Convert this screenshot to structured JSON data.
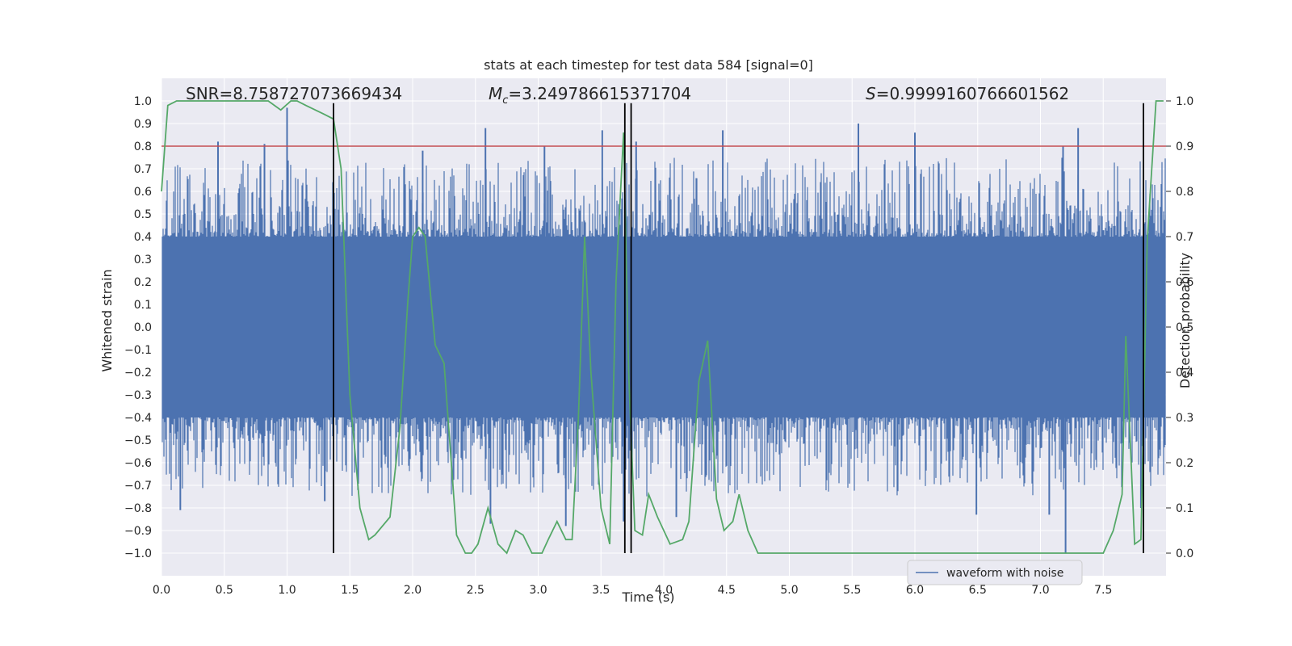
{
  "chart_data": {
    "type": "line",
    "title": "stats at each timestep for test data 584 [signal=0]",
    "xlabel": "Time (s)",
    "ylabel": "Whitened strain",
    "ylabel_right": "Detection probability",
    "xlim": [
      0.0,
      8.0
    ],
    "ylim": [
      -1.1,
      1.1
    ],
    "ylim_right": [
      -0.05,
      1.05
    ],
    "x_ticks": [
      0.0,
      0.5,
      1.0,
      1.5,
      2.0,
      2.5,
      3.0,
      3.5,
      4.0,
      4.5,
      5.0,
      5.5,
      6.0,
      6.5,
      7.0,
      7.5
    ],
    "x_tick_labels": [
      "0.0",
      "0.5",
      "1.0",
      "1.5",
      "2.0",
      "2.5",
      "3.0",
      "3.5",
      "4.0",
      "4.5",
      "5.0",
      "5.5",
      "6.0",
      "6.5",
      "7.0",
      "7.5"
    ],
    "y_ticks": [
      1.0,
      0.9,
      0.8,
      0.7,
      0.6,
      0.5,
      0.4,
      0.3,
      0.2,
      0.1,
      0.0,
      -0.1,
      -0.2,
      -0.3,
      -0.4,
      -0.5,
      -0.6,
      -0.7,
      -0.8,
      -0.9,
      -1.0
    ],
    "y_tick_labels": [
      "1.0",
      "0.9",
      "0.8",
      "0.7",
      "0.6",
      "0.5",
      "0.4",
      "0.3",
      "0.2",
      "0.1",
      "0.0",
      "−0.1",
      "−0.2",
      "−0.3",
      "−0.4",
      "−0.5",
      "−0.6",
      "−0.7",
      "−0.8",
      "−0.9",
      "−1.0"
    ],
    "y_right_ticks": [
      1.0,
      0.9,
      0.8,
      0.7,
      0.6,
      0.5,
      0.4,
      0.3,
      0.2,
      0.1,
      0.0
    ],
    "y_right_tick_labels": [
      "1.0",
      "0.9",
      "0.8",
      "0.7",
      "0.6",
      "0.5",
      "0.4",
      "0.3",
      "0.2",
      "0.1",
      "0.0"
    ],
    "annotations": {
      "snr": "SNR=8.758727073669434",
      "mc_symbol": "M",
      "mc_sub": "c",
      "mc_value": "=3.249786615371704",
      "s_symbol": "S",
      "s_value": "=0.9999160766601562"
    },
    "legend": {
      "label": "waveform with noise",
      "location": "lower-right"
    },
    "threshold_right": 0.9,
    "vertical_lines_x": [
      1.37,
      3.69,
      3.74,
      7.82
    ],
    "waveform_envelope": {
      "core_amplitude": 0.4,
      "spikes_pos": [
        {
          "x": 0.45,
          "y": 0.82
        },
        {
          "x": 0.82,
          "y": 0.81
        },
        {
          "x": 1.0,
          "y": 0.97
        },
        {
          "x": 2.08,
          "y": 0.78
        },
        {
          "x": 2.58,
          "y": 0.88
        },
        {
          "x": 3.05,
          "y": 0.8
        },
        {
          "x": 3.51,
          "y": 0.87
        },
        {
          "x": 3.78,
          "y": 0.82
        },
        {
          "x": 4.47,
          "y": 0.87
        },
        {
          "x": 5.55,
          "y": 0.9
        },
        {
          "x": 6.0,
          "y": 0.86
        },
        {
          "x": 7.18,
          "y": 0.8
        },
        {
          "x": 7.3,
          "y": 0.88
        }
      ],
      "spikes_neg": [
        {
          "x": 0.15,
          "y": -0.81
        },
        {
          "x": 1.3,
          "y": -0.77
        },
        {
          "x": 2.62,
          "y": -0.87
        },
        {
          "x": 3.22,
          "y": -0.88
        },
        {
          "x": 3.68,
          "y": -0.86
        },
        {
          "x": 4.1,
          "y": -0.84
        },
        {
          "x": 6.49,
          "y": -0.83
        },
        {
          "x": 7.07,
          "y": -0.83
        },
        {
          "x": 7.2,
          "y": -1.0
        },
        {
          "x": 7.8,
          "y": -0.8
        }
      ]
    },
    "detection_probability": {
      "x": [
        0.0,
        0.05,
        0.12,
        0.5,
        0.85,
        0.95,
        1.03,
        1.08,
        1.15,
        1.3,
        1.37,
        1.43,
        1.5,
        1.58,
        1.65,
        1.7,
        1.82,
        1.9,
        1.96,
        2.0,
        2.05,
        2.1,
        2.18,
        2.25,
        2.35,
        2.42,
        2.47,
        2.52,
        2.6,
        2.68,
        2.75,
        2.82,
        2.88,
        2.95,
        3.03,
        3.08,
        3.15,
        3.22,
        3.27,
        3.32,
        3.37,
        3.42,
        3.5,
        3.57,
        3.62,
        3.68,
        3.72,
        3.77,
        3.83,
        3.88,
        3.95,
        4.05,
        4.15,
        4.2,
        4.28,
        4.35,
        4.42,
        4.48,
        4.55,
        4.6,
        4.67,
        4.75,
        4.85,
        5.0,
        5.5,
        6.0,
        6.3,
        6.5,
        7.0,
        7.5,
        7.58,
        7.65,
        7.68,
        7.75,
        7.8,
        7.85,
        7.92,
        7.98
      ],
      "y": [
        0.8,
        0.99,
        1.0,
        1.0,
        1.0,
        0.98,
        1.0,
        1.0,
        0.99,
        0.97,
        0.96,
        0.85,
        0.35,
        0.1,
        0.03,
        0.04,
        0.08,
        0.28,
        0.55,
        0.7,
        0.72,
        0.7,
        0.46,
        0.42,
        0.04,
        0.0,
        0.0,
        0.02,
        0.1,
        0.02,
        0.0,
        0.05,
        0.04,
        0.0,
        0.0,
        0.03,
        0.07,
        0.03,
        0.03,
        0.3,
        0.7,
        0.4,
        0.1,
        0.02,
        0.6,
        0.93,
        0.4,
        0.05,
        0.04,
        0.13,
        0.08,
        0.02,
        0.03,
        0.07,
        0.38,
        0.47,
        0.12,
        0.05,
        0.07,
        0.13,
        0.05,
        0.0,
        0.0,
        0.0,
        0.0,
        0.0,
        0.0,
        0.0,
        0.0,
        0.0,
        0.05,
        0.13,
        0.48,
        0.02,
        0.03,
        0.69,
        1.0,
        1.0
      ]
    },
    "colors": {
      "background": "#EAEAF2",
      "grid": "#FFFFFF",
      "waveform": "#4C72B0",
      "probability": "#55A868",
      "threshold": "#C44E52",
      "vline": "#000000",
      "text": "#262626"
    }
  }
}
